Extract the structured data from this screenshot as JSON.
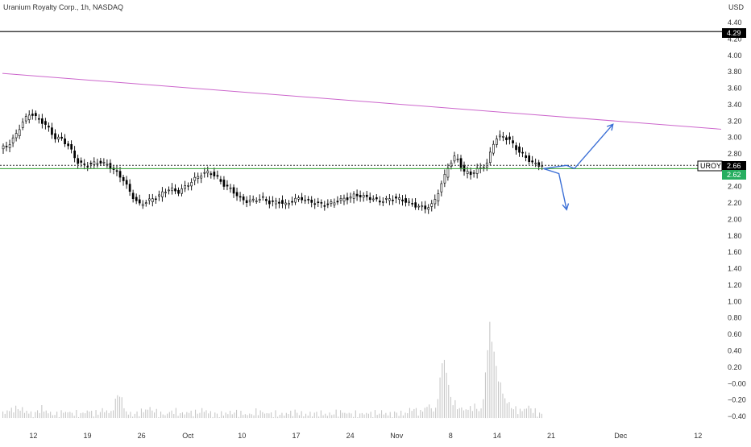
{
  "header": {
    "title": "Uranium Royalty Corp., 1h, NASDAQ",
    "currency": "USD"
  },
  "colors": {
    "candle_up": "#ffffff",
    "candle_down": "#000000",
    "wick": "#000000",
    "volume": "#c8c8c8",
    "resistance": "#cc66cc",
    "support": "#2e9e2e",
    "level_line": "#000000",
    "projection": "#3b6fd6",
    "price_badge": "#000000",
    "green_badge": "#27ae60",
    "axis_text": "#333333"
  },
  "chart_data": {
    "type": "candlestick",
    "symbol": "UROY",
    "title": "Uranium Royalty Corp., 1h, NASDAQ",
    "xlabel": "",
    "ylabel": "USD",
    "ylim": [
      -0.5,
      4.55
    ],
    "grid": false,
    "x_ticks": [
      "12",
      "19",
      "26",
      "Oct",
      "10",
      "17",
      "24",
      "Nov",
      "8",
      "14",
      "21",
      "Dec",
      "12"
    ],
    "y_ticks": [
      "4.40",
      "4.20",
      "4.00",
      "3.80",
      "3.60",
      "3.40",
      "3.20",
      "3.00",
      "2.80",
      "2.60",
      "2.40",
      "2.20",
      "2.00",
      "1.80",
      "1.60",
      "1.40",
      "1.20",
      "1.00",
      "0.80",
      "0.60",
      "0.40",
      "0.20",
      "−0.00",
      "−0.20",
      "−0.40"
    ],
    "price_labels": {
      "level": "4.29",
      "symbol": "UROY",
      "last": "2.66",
      "support": "2.62"
    },
    "horizontal_levels": [
      {
        "name": "black-level",
        "value": 4.29
      },
      {
        "name": "green-support",
        "value": 2.62
      },
      {
        "name": "last-price-dotted",
        "value": 2.66
      }
    ],
    "trendline": {
      "from": [
        0,
        3.78
      ],
      "to": [
        93,
        3.1
      ]
    },
    "price_path": [
      [
        0,
        2.86
      ],
      [
        1,
        2.9
      ],
      [
        2,
        3.02
      ],
      [
        3,
        3.2
      ],
      [
        4,
        3.3
      ],
      [
        5,
        3.22
      ],
      [
        6,
        3.15
      ],
      [
        7,
        3.0
      ],
      [
        8,
        2.98
      ],
      [
        9,
        2.88
      ],
      [
        10,
        2.7
      ],
      [
        11,
        2.66
      ],
      [
        12,
        2.68
      ],
      [
        13,
        2.7
      ],
      [
        14,
        2.66
      ],
      [
        15,
        2.58
      ],
      [
        16,
        2.48
      ],
      [
        17,
        2.3
      ],
      [
        18,
        2.18
      ],
      [
        19,
        2.22
      ],
      [
        20,
        2.26
      ],
      [
        21,
        2.32
      ],
      [
        22,
        2.38
      ],
      [
        23,
        2.33
      ],
      [
        24,
        2.4
      ],
      [
        25,
        2.48
      ],
      [
        26,
        2.55
      ],
      [
        27,
        2.58
      ],
      [
        28,
        2.52
      ],
      [
        29,
        2.42
      ],
      [
        30,
        2.36
      ],
      [
        31,
        2.26
      ],
      [
        32,
        2.22
      ],
      [
        33,
        2.24
      ],
      [
        34,
        2.26
      ],
      [
        35,
        2.2
      ],
      [
        36,
        2.22
      ],
      [
        37,
        2.18
      ],
      [
        38,
        2.24
      ],
      [
        39,
        2.26
      ],
      [
        40,
        2.22
      ],
      [
        41,
        2.2
      ],
      [
        42,
        2.18
      ],
      [
        43,
        2.2
      ],
      [
        44,
        2.24
      ],
      [
        45,
        2.26
      ],
      [
        46,
        2.3
      ],
      [
        47,
        2.28
      ],
      [
        48,
        2.26
      ],
      [
        49,
        2.22
      ],
      [
        50,
        2.24
      ],
      [
        51,
        2.26
      ],
      [
        52,
        2.24
      ],
      [
        53,
        2.2
      ],
      [
        54,
        2.16
      ],
      [
        55,
        2.14
      ],
      [
        56,
        2.18
      ],
      [
        57,
        2.4
      ],
      [
        58,
        2.65
      ],
      [
        59,
        2.78
      ],
      [
        60,
        2.58
      ],
      [
        61,
        2.56
      ],
      [
        62,
        2.62
      ],
      [
        63,
        2.68
      ],
      [
        64,
        2.98
      ],
      [
        65,
        3.02
      ],
      [
        66,
        2.96
      ],
      [
        67,
        2.84
      ],
      [
        68,
        2.76
      ],
      [
        69,
        2.68
      ],
      [
        70,
        2.66
      ]
    ],
    "volume_path": [
      [
        0,
        -0.36
      ],
      [
        1,
        -0.32
      ],
      [
        2,
        -0.3
      ],
      [
        3,
        -0.34
      ],
      [
        4,
        -0.38
      ],
      [
        5,
        -0.3
      ],
      [
        6,
        -0.36
      ],
      [
        7,
        -0.38
      ],
      [
        8,
        -0.34
      ],
      [
        9,
        -0.36
      ],
      [
        10,
        -0.38
      ],
      [
        11,
        -0.33
      ],
      [
        12,
        -0.37
      ],
      [
        13,
        -0.32
      ],
      [
        14,
        -0.36
      ],
      [
        15,
        -0.1
      ],
      [
        16,
        -0.36
      ],
      [
        17,
        -0.38
      ],
      [
        18,
        -0.34
      ],
      [
        19,
        -0.3
      ],
      [
        20,
        -0.36
      ],
      [
        21,
        -0.38
      ],
      [
        22,
        -0.33
      ],
      [
        23,
        -0.37
      ],
      [
        24,
        -0.35
      ],
      [
        25,
        -0.36
      ],
      [
        26,
        -0.32
      ],
      [
        27,
        -0.37
      ],
      [
        28,
        -0.38
      ],
      [
        29,
        -0.36
      ],
      [
        30,
        -0.35
      ],
      [
        31,
        -0.37
      ],
      [
        32,
        -0.38
      ],
      [
        33,
        -0.34
      ],
      [
        34,
        -0.36
      ],
      [
        35,
        -0.37
      ],
      [
        36,
        -0.38
      ],
      [
        37,
        -0.36
      ],
      [
        38,
        -0.35
      ],
      [
        39,
        -0.38
      ],
      [
        40,
        -0.37
      ],
      [
        41,
        -0.36
      ],
      [
        42,
        -0.38
      ],
      [
        43,
        -0.36
      ],
      [
        44,
        -0.35
      ],
      [
        45,
        -0.37
      ],
      [
        46,
        -0.38
      ],
      [
        47,
        -0.36
      ],
      [
        48,
        -0.37
      ],
      [
        49,
        -0.35
      ],
      [
        50,
        -0.38
      ],
      [
        51,
        -0.36
      ],
      [
        52,
        -0.37
      ],
      [
        53,
        -0.3
      ],
      [
        54,
        -0.36
      ],
      [
        55,
        -0.26
      ],
      [
        56,
        -0.34
      ],
      [
        57,
        0.36
      ],
      [
        58,
        -0.2
      ],
      [
        59,
        -0.3
      ],
      [
        60,
        -0.32
      ],
      [
        61,
        -0.28
      ],
      [
        62,
        -0.34
      ],
      [
        63,
        0.72
      ],
      [
        64,
        0.1
      ],
      [
        65,
        -0.2
      ],
      [
        66,
        -0.3
      ],
      [
        67,
        -0.34
      ],
      [
        68,
        -0.28
      ],
      [
        69,
        -0.36
      ],
      [
        70,
        -0.38
      ]
    ],
    "projection_up": [
      [
        70,
        2.62
      ],
      [
        73,
        2.66
      ],
      [
        74,
        2.62
      ],
      [
        79,
        3.16
      ]
    ],
    "projection_down": [
      [
        70,
        2.62
      ],
      [
        72,
        2.56
      ],
      [
        73,
        2.12
      ]
    ]
  }
}
